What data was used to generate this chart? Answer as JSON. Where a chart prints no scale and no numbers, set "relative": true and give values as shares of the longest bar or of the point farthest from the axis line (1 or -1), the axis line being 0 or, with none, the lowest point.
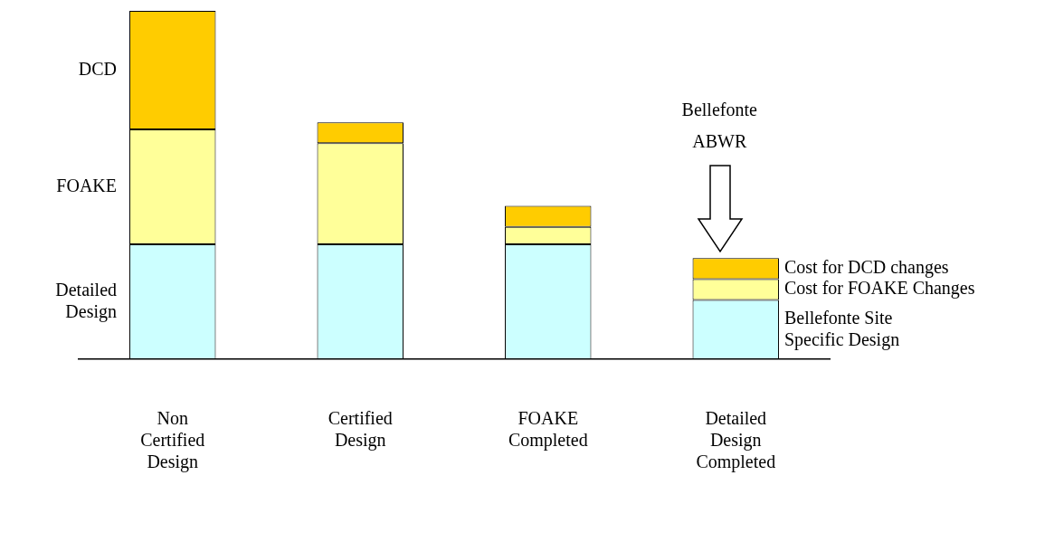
{
  "chart_data": {
    "type": "bar",
    "stacked": true,
    "relative": true,
    "grid": false,
    "legend": false,
    "categories": [
      "Non Certified Design",
      "Certified Design",
      "FOAKE Completed",
      "Detailed Design Completed"
    ],
    "series": [
      {
        "name": "Detailed Design",
        "color": "#ccffff",
        "values": [
          0.33,
          0.33,
          0.33,
          0.17
        ]
      },
      {
        "name": "FOAKE",
        "color": "#ffff99",
        "values": [
          0.33,
          0.29,
          0.05,
          0.06
        ]
      },
      {
        "name": "DCD",
        "color": "#ffcc00",
        "values": [
          0.34,
          0.06,
          0.06,
          0.06
        ]
      }
    ],
    "annotations": [
      "Bellefonte\nABWR",
      "Cost for DCD changes",
      "Cost for FOAKE Changes",
      "Bellefonte Site\nSpecific Design"
    ]
  }
}
